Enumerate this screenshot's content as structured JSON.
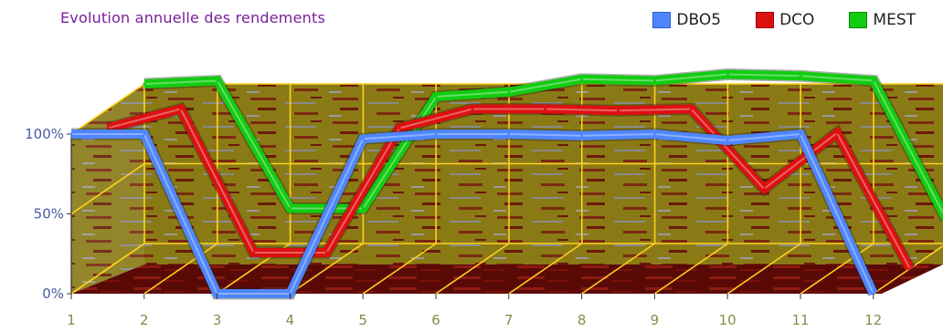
{
  "chart_data": {
    "type": "line",
    "title": "Evolution annuelle des rendements",
    "categories": [
      "1",
      "2",
      "3",
      "4",
      "5",
      "6",
      "7",
      "8",
      "9",
      "10",
      "11",
      "12"
    ],
    "yticks": [
      "0%",
      "50%",
      "100%"
    ],
    "ylim": [
      0,
      100
    ],
    "legend_position": "top-right",
    "series": [
      {
        "name": "DBO5",
        "color": "#4f86ff",
        "values": [
          100,
          100,
          0,
          0,
          97,
          100,
          100,
          99,
          100,
          96,
          100,
          0
        ]
      },
      {
        "name": "DCO",
        "color": "#dd1010",
        "values": [
          88,
          100,
          10,
          10,
          88,
          100,
          100,
          99,
          100,
          50,
          85,
          0
        ]
      },
      {
        "name": "MEST",
        "color": "#12cc12",
        "values": [
          100,
          102,
          22,
          22,
          92,
          95,
          103,
          102,
          106,
          105,
          102,
          15
        ]
      }
    ]
  }
}
